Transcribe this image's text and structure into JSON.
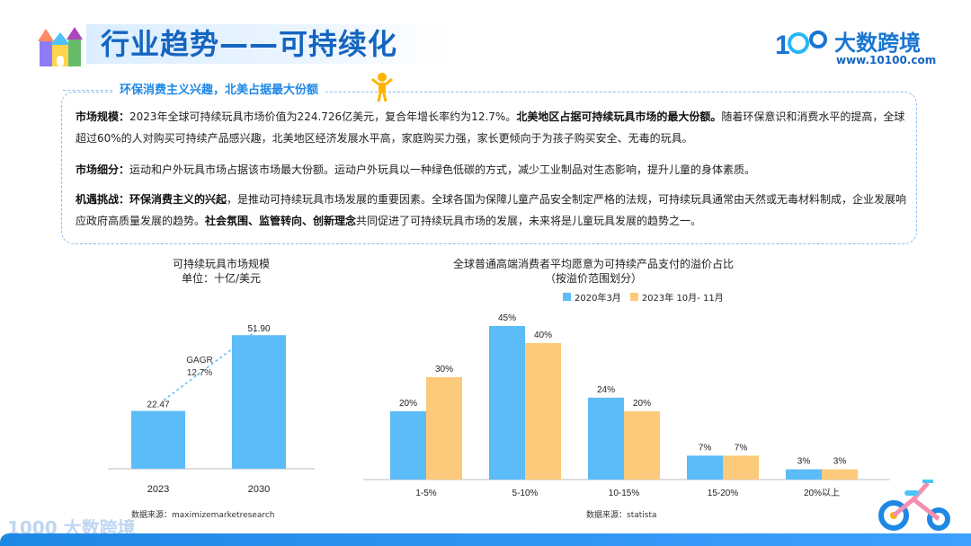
{
  "header": {
    "title": "行业趋势——可持续化",
    "brand_logo_text": "1000",
    "brand_name": "大数跨境",
    "brand_url": "www.10100.com"
  },
  "info_box": {
    "label": "环保消费主义兴趣，北美占据最大份额",
    "market_size": {
      "heading": "市场规模：",
      "text_1": "2023年全球可持续玩具市场价值为224.726亿美元，复合年增长率约为12.7%。",
      "bold": "北美地区占据可持续玩具市场的最大份额。",
      "text_2": "随着环保意识和消费水平的提高，全球超过60%的人对购买可持续产品感兴趣，北美地区经济发展水平高，家庭购买力强，家长更倾向于为孩子购买安全、无毒的玩具。"
    },
    "segment": {
      "heading": "市场细分：",
      "text": "运动和户外玩具市场占据该市场最大份额。运动户外玩具以一种绿色低碳的方式，减少工业制品对生态影响，提升儿童的身体素质。"
    },
    "opportunity": {
      "heading": "机遇挑战：",
      "bold_1": "环保消费主义的兴起",
      "text_1": "，是推动可持续玩具市场发展的重要因素。全球各国为保障儿童产品安全制定严格的法规，可持续玩具通常由天然或无毒材料制成，企业发展响应政府高质量发展的趋势。",
      "bold_2": "社会氛围、监管转向、创新理念",
      "text_2": "共同促进了可持续玩具市场的发展，未来将是儿童玩具发展的趋势之一。"
    }
  },
  "chart_data": [
    {
      "type": "bar",
      "title": "可持续玩具市场规模",
      "subtitle": "单位：十亿/美元",
      "categories": [
        "2023",
        "2030"
      ],
      "values": [
        22.47,
        51.9
      ],
      "value_labels": [
        "22.47",
        "51.90"
      ],
      "annotation": [
        "GAGR",
        "12.7%"
      ],
      "ylim": [
        0,
        60
      ],
      "color": "#5bbcf7",
      "source": "数据来源：maximizemarketresearch"
    },
    {
      "type": "bar",
      "title": "全球普通高端消费者平均愿意为可持续产品支付的溢价占比",
      "subtitle": "（按溢价范围划分）",
      "categories": [
        "1-5%",
        "5-10%",
        "10-15%",
        "15-20%",
        "20%以上"
      ],
      "series": [
        {
          "name": "2020年3月",
          "values": [
            20,
            45,
            24,
            7,
            3
          ],
          "color": "#5bbcf7"
        },
        {
          "name": "2023年 10月- 11月",
          "values": [
            30,
            40,
            20,
            7,
            3
          ],
          "color": "#fcca7a"
        }
      ],
      "ylim": [
        0,
        50
      ],
      "source": "数据来源：statista"
    }
  ],
  "footer": {
    "brand_text": "1000 大数跨境"
  }
}
